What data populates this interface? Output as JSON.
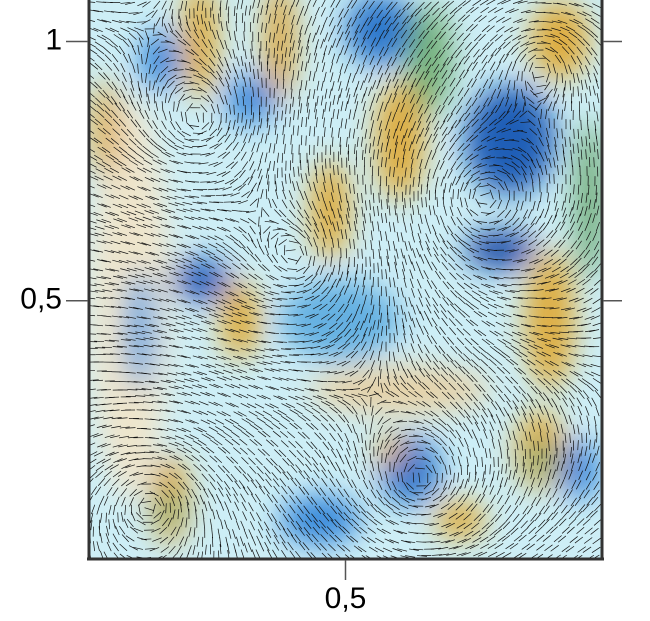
{
  "chart_data": {
    "type": "vector-field",
    "xlim": [
      0,
      1
    ],
    "ylim": [
      0,
      1.08
    ],
    "xticks": [
      {
        "value": 0.5,
        "label": "0,5"
      }
    ],
    "yticks": [
      {
        "value": 0.5,
        "label": "0,5"
      },
      1
    ]
  }
}
